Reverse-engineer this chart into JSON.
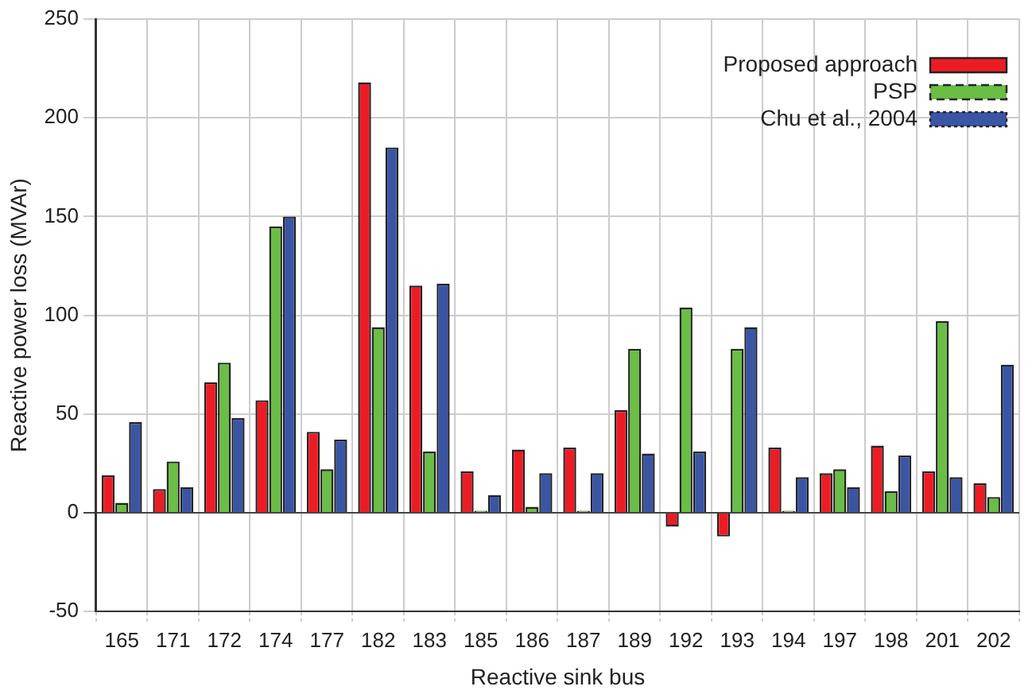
{
  "chart_data": {
    "type": "bar",
    "xlabel": "Reactive sink bus",
    "ylabel": "Reactive power loss (MVAr)",
    "categories": [
      "165",
      "171",
      "172",
      "174",
      "177",
      "182",
      "183",
      "185",
      "186",
      "187",
      "189",
      "192",
      "193",
      "194",
      "197",
      "198",
      "201",
      "202"
    ],
    "series": [
      {
        "name": "Proposed approach",
        "color": "#ed1c24",
        "line_style": "solid",
        "values": [
          19,
          12,
          66,
          57,
          41,
          218,
          115,
          21,
          32,
          33,
          52,
          -7,
          -12,
          33,
          20,
          34,
          21,
          15
        ]
      },
      {
        "name": "PSP",
        "color": "#6abd45",
        "line_style": "dashed",
        "values": [
          5,
          26,
          76,
          145,
          22,
          94,
          31,
          1,
          3,
          1,
          83,
          104,
          83,
          1,
          22,
          11,
          97,
          8
        ]
      },
      {
        "name": "Chu et al., 2004",
        "color": "#3a55a4",
        "line_style": "dotted",
        "values": [
          46,
          13,
          48,
          150,
          37,
          185,
          116,
          9,
          20,
          20,
          30,
          31,
          94,
          18,
          13,
          29,
          18,
          75
        ]
      }
    ],
    "ylim": [
      -50,
      250
    ],
    "yticks": [
      -50,
      0,
      50,
      100,
      150,
      200,
      250
    ],
    "grid": true,
    "legend": "top right"
  }
}
